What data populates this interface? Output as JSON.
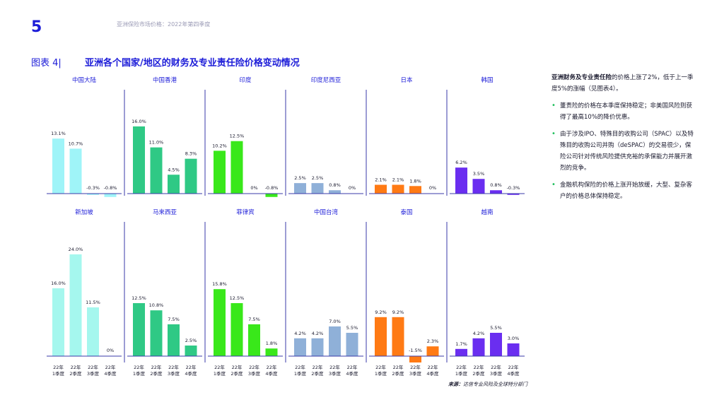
{
  "header": {
    "page_number": "5",
    "running_title": "亚洲保险市场价格：2022年第四季度"
  },
  "figure": {
    "label": "图表 4|",
    "title": "亚洲各个国家/地区的财务及专业责任险价格变动情况"
  },
  "side": {
    "intro_bold1": "亚洲财务及专业责任险",
    "intro_rest": "的价格上涨了2%，低于上一季度5%的涨幅（见图表4）。",
    "bullets": [
      "董责险的价格在本季度保持稳定；非美国风险则获得了最高10%的降价优惠。",
      "由于涉及IPO、特殊目的收购公司（SPAC）以及特殊目的收购公司并购（deSPAC）的交易很少，保险公司针对传统风险提供充裕的承保能力并展开激烈的竞争。",
      "金融机构保险的价格上涨开始放缓，大型、复杂客户的价格总体保持稳定。"
    ],
    "bullet_color": "#1fbf5c"
  },
  "source": {
    "label": "来源：",
    "text": "达信专业风险及全球特分部门"
  },
  "chart_data": {
    "type": "bar",
    "title": "亚洲各个国家/地区的财务及专业责任险价格变动情况",
    "categories": [
      "22年\n1季度",
      "22年\n2季度",
      "22年\n3季度",
      "22年\n4季度"
    ],
    "tick_labels": [
      [
        "22年",
        "1季度"
      ],
      [
        "22年",
        "2季度"
      ],
      [
        "22年",
        "3季度"
      ],
      [
        "22年",
        "4季度"
      ]
    ],
    "unit": "%",
    "divider_color": "#3a3aa8",
    "rows": [
      {
        "ylim": [
          -1,
          17
        ],
        "panels": [
          {
            "name": "中国大陆",
            "color": "#9ff4f8",
            "values": [
              13.1,
              10.7,
              -0.3,
              -0.8
            ],
            "labels": [
              "13.1%",
              "10.7%",
              "-0.3%",
              "-0.8%"
            ]
          },
          {
            "name": "中国香港",
            "color": "#2fc985",
            "values": [
              16.0,
              11.0,
              4.5,
              8.3
            ],
            "labels": [
              "16.0%",
              "11.0%",
              "4.5%",
              "8.3%"
            ]
          },
          {
            "name": "印度",
            "color": "#39e81a",
            "values": [
              10.2,
              12.5,
              0.0,
              -0.8
            ],
            "labels": [
              "10.2%",
              "12.5%",
              "0%",
              "-0.8%"
            ]
          },
          {
            "name": "印度尼西亚",
            "color": "#8fb0d8",
            "values": [
              2.5,
              2.5,
              0.8,
              0.0
            ],
            "labels": [
              "2.5%",
              "2.5%",
              "0.8%",
              "0%"
            ]
          },
          {
            "name": "日本",
            "color": "#ff7a14",
            "values": [
              2.1,
              2.1,
              1.8,
              0.0
            ],
            "labels": [
              "2.1%",
              "2.1%",
              "1.8%",
              "0%"
            ]
          },
          {
            "name": "韩国",
            "color": "#6a2ef0",
            "values": [
              6.2,
              3.5,
              0.8,
              -0.3
            ],
            "labels": [
              "6.2%",
              "3.5%",
              "0.8%",
              "-0.3%"
            ]
          }
        ]
      },
      {
        "ylim": [
          -2,
          26
        ],
        "panels": [
          {
            "name": "新加坡",
            "color": "#a5f7ee",
            "values": [
              16.0,
              24.0,
              11.5,
              0.0
            ],
            "labels": [
              "16.0%",
              "24.0%",
              "11.5%",
              "0%"
            ]
          },
          {
            "name": "马来西亚",
            "color": "#2fc985",
            "values": [
              12.5,
              10.8,
              7.5,
              2.5
            ],
            "labels": [
              "12.5%",
              "10.8%",
              "7.5%",
              "2.5%"
            ]
          },
          {
            "name": "菲律宾",
            "color": "#39e81a",
            "values": [
              15.8,
              12.5,
              7.5,
              1.8
            ],
            "labels": [
              "15.8%",
              "12.5%",
              "7.5%",
              "1.8%"
            ]
          },
          {
            "name": "中国台湾",
            "color": "#8fb0d8",
            "values": [
              4.2,
              4.2,
              7.0,
              5.5
            ],
            "labels": [
              "4.2%",
              "4.2%",
              "7.0%",
              "5.5%"
            ]
          },
          {
            "name": "泰国",
            "color": "#ff7a14",
            "values": [
              9.2,
              9.2,
              -1.5,
              2.3
            ],
            "labels": [
              "9.2%",
              "9.2%",
              "-1.5%",
              "2.3%"
            ]
          },
          {
            "name": "越南",
            "color": "#6a2ef0",
            "values": [
              1.7,
              4.2,
              5.5,
              3.0
            ],
            "labels": [
              "1.7%",
              "4.2%",
              "5.5%",
              "3.0%"
            ]
          }
        ]
      }
    ]
  }
}
